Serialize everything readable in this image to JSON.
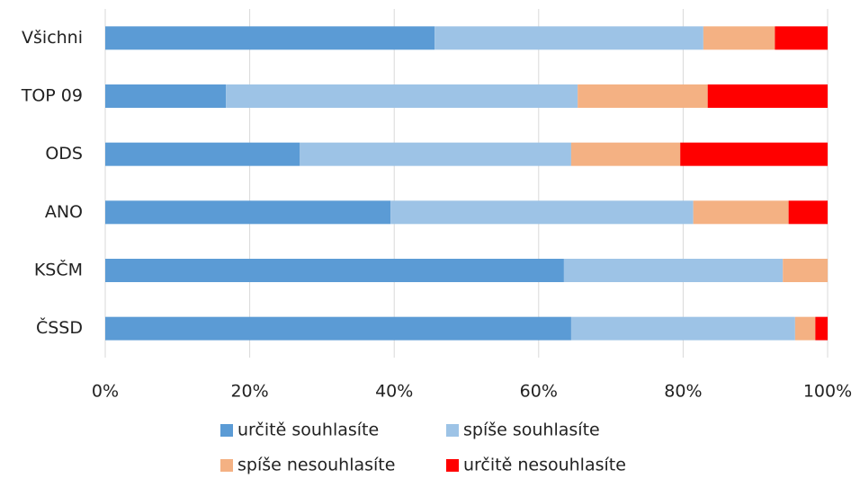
{
  "chart_data": {
    "type": "stacked_barh",
    "categories": [
      "Všichni",
      "TOP 09",
      "ODS",
      "ANO",
      "KSČM",
      "ČSSD"
    ],
    "series": [
      {
        "name": "určitě souhlasíte",
        "color": "#5b9bd5",
        "values": [
          45.6,
          16.7,
          26.9,
          39.5,
          63.5,
          64.5
        ]
      },
      {
        "name": "spíše souhlasíte",
        "color": "#9dc3e6",
        "values": [
          37.2,
          48.7,
          37.6,
          41.9,
          30.3,
          31.0
        ]
      },
      {
        "name": "spíše nesouhlasíte",
        "color": "#f4b183",
        "values": [
          9.9,
          18.0,
          15.1,
          13.2,
          6.2,
          2.8
        ]
      },
      {
        "name": "určitě nesouhlasíte",
        "color": "#ff0000",
        "values": [
          7.3,
          16.6,
          20.4,
          5.4,
          0,
          1.7
        ]
      }
    ],
    "xlim": [
      0,
      100
    ],
    "xticks": [
      {
        "value": 0,
        "label": "0%"
      },
      {
        "value": 20,
        "label": "20%"
      },
      {
        "value": 40,
        "label": "40%"
      },
      {
        "value": 60,
        "label": "60%"
      },
      {
        "value": 80,
        "label": "80%"
      },
      {
        "value": 100,
        "label": "100%"
      }
    ],
    "grid": true,
    "legend": "bottom"
  }
}
